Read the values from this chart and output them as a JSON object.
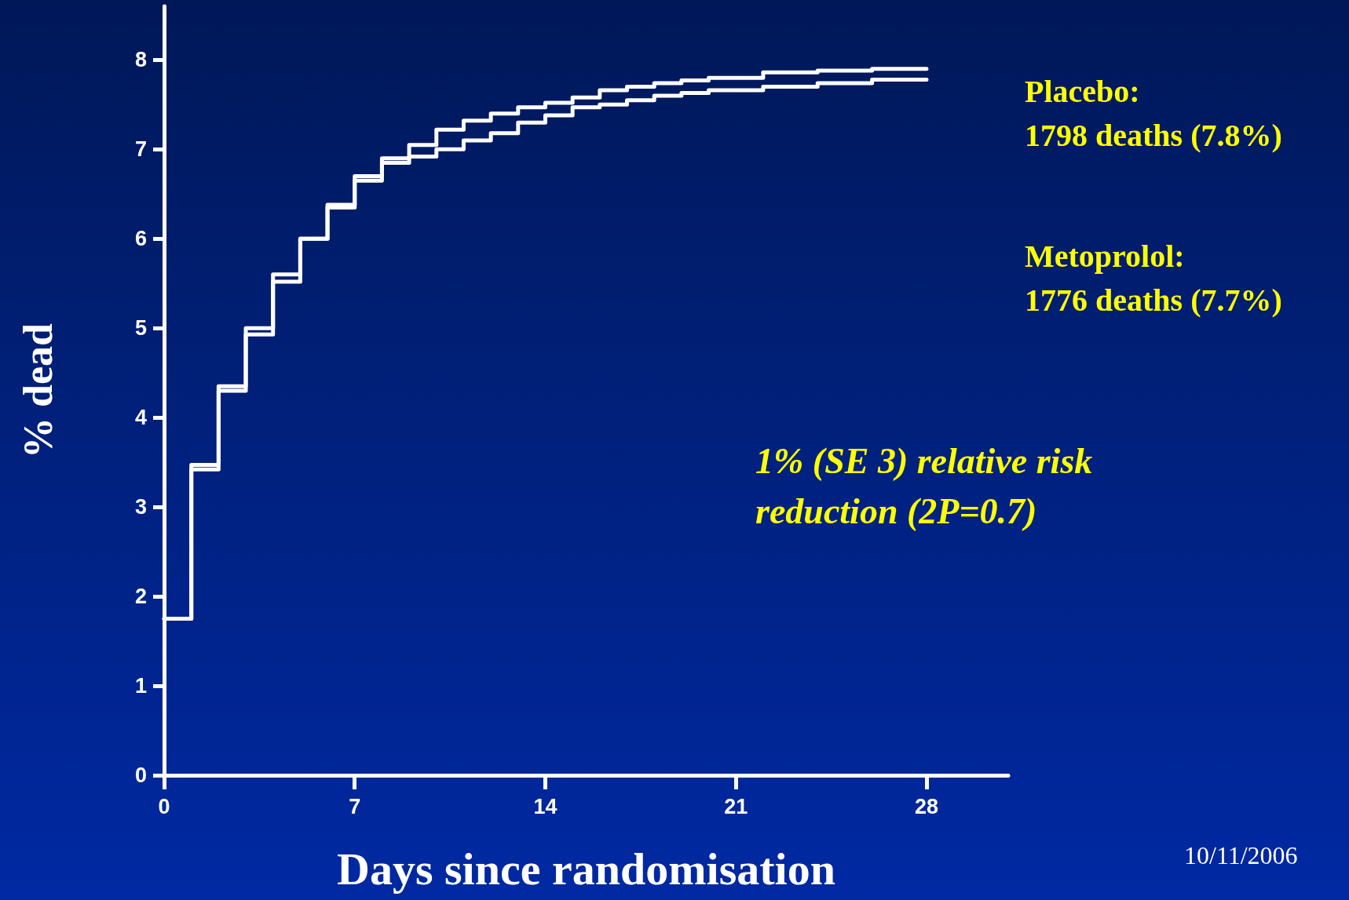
{
  "chart_data": {
    "type": "step",
    "xlabel": "Days since randomisation",
    "ylabel": "% dead",
    "x": [
      0,
      1,
      2,
      3,
      4,
      5,
      6,
      7,
      8,
      9,
      10,
      11,
      12,
      13,
      14,
      15,
      16,
      17,
      18,
      19,
      20,
      22,
      24,
      26,
      28
    ],
    "series": [
      {
        "color": "#ffffff",
        "values": [
          1.75,
          3.47,
          4.35,
          5.0,
          5.6,
          6.0,
          6.38,
          6.7,
          6.9,
          7.05,
          7.22,
          7.32,
          7.4,
          7.47,
          7.52,
          7.58,
          7.66,
          7.7,
          7.74,
          7.77,
          7.8,
          7.86,
          7.88,
          7.9,
          7.9
        ]
      },
      {
        "color": "#ffffff",
        "values": [
          1.75,
          3.42,
          4.3,
          4.93,
          5.52,
          6.0,
          6.35,
          6.65,
          6.85,
          6.92,
          7.0,
          7.1,
          7.18,
          7.3,
          7.38,
          7.47,
          7.5,
          7.55,
          7.6,
          7.63,
          7.66,
          7.7,
          7.74,
          7.78,
          7.78
        ]
      }
    ],
    "xlim": [
      0,
      31
    ],
    "xticks": [
      0,
      7,
      14,
      21,
      28
    ],
    "ylim": [
      0,
      8.6
    ],
    "yticks": [
      0,
      1,
      2,
      3,
      4,
      5,
      6,
      7,
      8
    ],
    "grid": false,
    "marker": "none",
    "line_style": "solid",
    "annotations": [
      "Placebo:\n1798 deaths (7.8%)",
      "Metoprolol:\n1776 deaths (7.7%)",
      "1% (SE 3) relative risk\nreduction (2P=0.7)",
      "10/11/2006"
    ]
  }
}
